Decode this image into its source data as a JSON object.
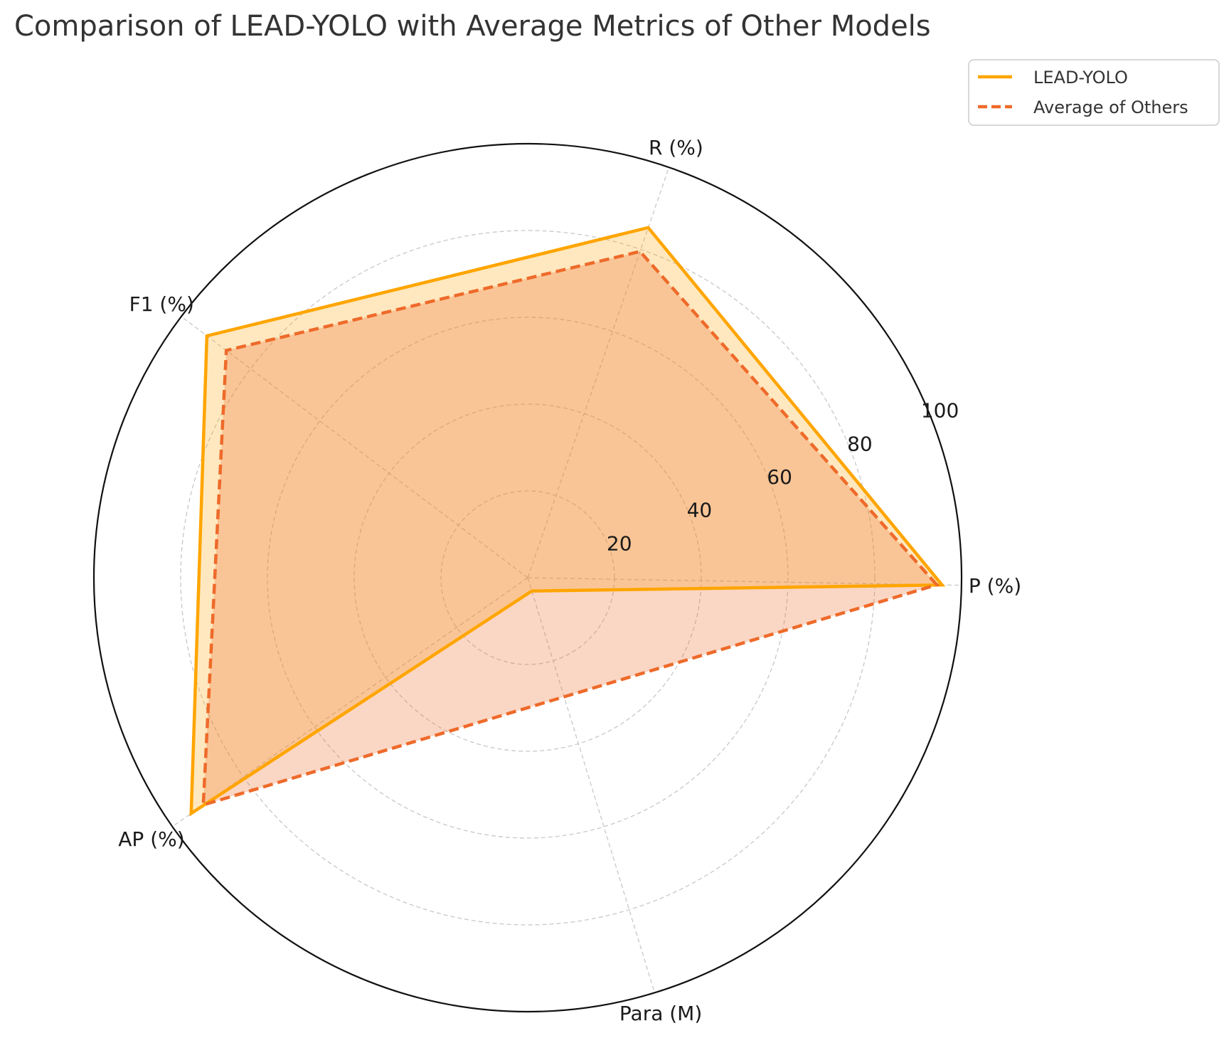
{
  "chart_data": {
    "type": "radar",
    "title": "Comparison of LEAD-YOLO with Average Metrics of Other Models",
    "categories": [
      "P (%)",
      "R (%)",
      "F1 (%)",
      "AP (%)",
      "Para (M)"
    ],
    "rlim": [
      0,
      100
    ],
    "radial_ticks": [
      20,
      40,
      60,
      80,
      100
    ],
    "series": [
      {
        "name": "LEAD-YOLO",
        "values": [
          95.5,
          85.3,
          92.6,
          94.7,
          3.2
        ],
        "color": "#FFA500",
        "fill_opacity": 0.25,
        "line_style": "solid"
      },
      {
        "name": "Average of Others",
        "values": [
          94.3,
          79.5,
          87.0,
          91.3,
          28.7
        ],
        "color": "#EE6A2A",
        "fill_opacity": 0.28,
        "line_style": "dashed"
      }
    ],
    "grid": true,
    "legend_position": "top-right"
  }
}
